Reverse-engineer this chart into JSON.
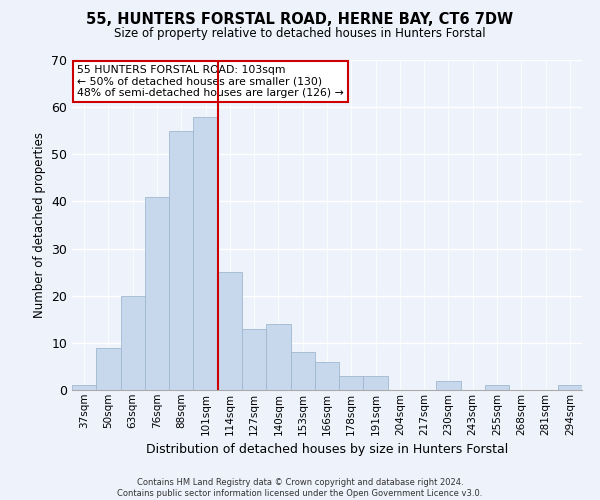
{
  "title": "55, HUNTERS FORSTAL ROAD, HERNE BAY, CT6 7DW",
  "subtitle": "Size of property relative to detached houses in Hunters Forstal",
  "xlabel": "Distribution of detached houses by size in Hunters Forstal",
  "ylabel": "Number of detached properties",
  "bar_labels": [
    "37sqm",
    "50sqm",
    "63sqm",
    "76sqm",
    "88sqm",
    "101sqm",
    "114sqm",
    "127sqm",
    "140sqm",
    "153sqm",
    "166sqm",
    "178sqm",
    "191sqm",
    "204sqm",
    "217sqm",
    "230sqm",
    "243sqm",
    "255sqm",
    "268sqm",
    "281sqm",
    "294sqm"
  ],
  "bar_heights": [
    1,
    9,
    20,
    41,
    55,
    58,
    25,
    13,
    14,
    8,
    6,
    3,
    3,
    0,
    0,
    2,
    0,
    1,
    0,
    0,
    1
  ],
  "bar_color": "#c8d8ec",
  "bar_edge_color": "#a0b8d0",
  "vline_color": "#cc0000",
  "ylim": [
    0,
    70
  ],
  "yticks": [
    0,
    10,
    20,
    30,
    40,
    50,
    60,
    70
  ],
  "annotation_lines": [
    "55 HUNTERS FORSTAL ROAD: 103sqm",
    "← 50% of detached houses are smaller (130)",
    "48% of semi-detached houses are larger (126) →"
  ],
  "annotation_box_color": "#ffffff",
  "annotation_box_edge": "#cc0000",
  "footer_line1": "Contains HM Land Registry data © Crown copyright and database right 2024.",
  "footer_line2": "Contains public sector information licensed under the Open Government Licence v3.0.",
  "background_color": "#eef2fb",
  "grid_color": "#ffffff",
  "title_fontsize": 10.5,
  "subtitle_fontsize": 8.5,
  "ylabel_fontsize": 8.5,
  "xlabel_fontsize": 9
}
